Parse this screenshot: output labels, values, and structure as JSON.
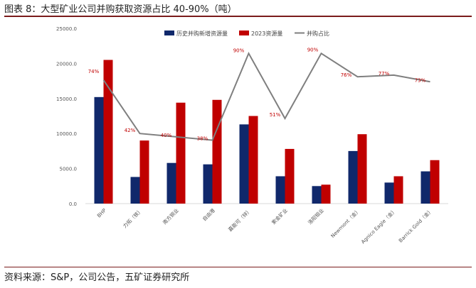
{
  "header": {
    "title": "图表 8：大型矿业公司并购获取资源占比 40-90%（吨）"
  },
  "footer": {
    "source": "资料来源：S&P，公司公告，五矿证券研究所"
  },
  "colors": {
    "series1": "#10286b",
    "series2": "#c00000",
    "line": "#7f7f7f",
    "label": "#c00000"
  },
  "chart_data": {
    "type": "bar",
    "categories": [
      "BHP",
      "力拓（铁）",
      "南方铜业",
      "自由港",
      "嘉能可（锌）",
      "紫金矿业",
      "洛阳钼业",
      "Newmont（金）",
      "Agnico Eagle（金）",
      "Barrick Gold（金）"
    ],
    "series": [
      {
        "name": "历史并购新增资源量",
        "type": "bar",
        "values": [
          15200,
          3800,
          5800,
          5600,
          11300,
          3900,
          2500,
          7500,
          3000,
          4600
        ]
      },
      {
        "name": "2023资源量",
        "type": "bar",
        "values": [
          20500,
          9000,
          14400,
          14800,
          12500,
          7800,
          2700,
          9900,
          3900,
          6200
        ]
      },
      {
        "name": "并购占比",
        "type": "line",
        "values": [
          74,
          42,
          40,
          38,
          90,
          51,
          90,
          76,
          77,
          73
        ],
        "labels": [
          "74%",
          "42%",
          "40%",
          "38%",
          "90%",
          "51%",
          "90%",
          "76%",
          "77%",
          "73%"
        ]
      }
    ],
    "yaxis": {
      "ticks": [
        "0.0",
        "5000.0",
        "10000.0",
        "15000.0",
        "20000.0",
        "25000.0"
      ],
      "ylim": [
        0,
        25000
      ]
    },
    "y2lim": [
      0,
      105
    ],
    "legend_position": "top"
  }
}
